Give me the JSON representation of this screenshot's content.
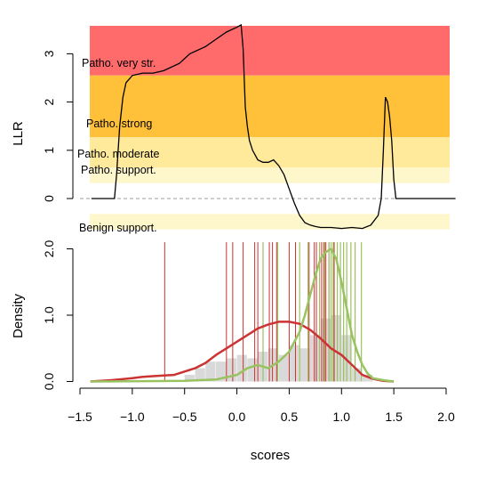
{
  "chart_data": [
    {
      "type": "line",
      "panel": "top",
      "ylabel": "LLR",
      "xlim": [
        -1.5,
        2.0
      ],
      "ylim": [
        -0.65,
        3.55
      ],
      "yticks": [
        0,
        1,
        2,
        3
      ],
      "zero_line": "dashed",
      "colors": {
        "very_strong": "#ff6b6b",
        "strong": "#ffc03a",
        "moderate": "#ffe99a",
        "supporting": "#fff7cc",
        "benign": "#fff7cc"
      },
      "bands": [
        {
          "label": "Patho. very str.",
          "ymin": 2.55,
          "ymax": 3.6,
          "color": "#ff6b6b"
        },
        {
          "label": "Patho. strong",
          "ymin": 1.27,
          "ymax": 2.55,
          "color": "#ffc03a"
        },
        {
          "label": "Patho. moderate",
          "ymin": 0.64,
          "ymax": 1.27,
          "color": "#ffe99a"
        },
        {
          "label": "Patho. support.",
          "ymin": 0.32,
          "ymax": 0.64,
          "color": "#fff7cc"
        },
        {
          "label": "Benign support.",
          "ymin": -0.64,
          "ymax": -0.32,
          "color": "#fff7cc"
        }
      ],
      "series": [
        {
          "x": [
            -1.39,
            -1.17,
            -1.15,
            -1.12,
            -1.09,
            -1.06,
            -1.0,
            -0.9,
            -0.8,
            -0.7,
            -0.55,
            -0.45,
            -0.3,
            -0.2,
            -0.1,
            0.0,
            0.04,
            0.06,
            0.08,
            0.1,
            0.12,
            0.15,
            0.2,
            0.25,
            0.3,
            0.35,
            0.4,
            0.45,
            0.5,
            0.55,
            0.6,
            0.65,
            0.7,
            0.75,
            0.8,
            0.9,
            1.0,
            1.1,
            1.2,
            1.28,
            1.35,
            1.38,
            1.4,
            1.42,
            1.44,
            1.46,
            1.48,
            1.5,
            1.52,
            1.55,
            2.09
          ],
          "y": [
            0.0,
            0.0,
            0.5,
            1.5,
            2.1,
            2.4,
            2.55,
            2.6,
            2.6,
            2.65,
            2.8,
            3.0,
            3.15,
            3.3,
            3.45,
            3.55,
            3.6,
            3.1,
            1.9,
            1.5,
            1.2,
            1.0,
            0.8,
            0.75,
            0.75,
            0.8,
            0.68,
            0.5,
            0.2,
            -0.1,
            -0.35,
            -0.5,
            -0.55,
            -0.58,
            -0.6,
            -0.6,
            -0.62,
            -0.6,
            -0.62,
            -0.55,
            -0.35,
            0.0,
            1.0,
            2.1,
            2.0,
            1.7,
            1.2,
            0.4,
            0.0,
            0.0,
            0.0
          ]
        }
      ]
    },
    {
      "type": "line",
      "panel": "bottom",
      "xlabel": "scores",
      "ylabel": "Density",
      "xlim": [
        -1.5,
        2.0
      ],
      "ylim": [
        0,
        2.0
      ],
      "xticks": [
        -1.5,
        -1.0,
        -0.5,
        0.0,
        0.5,
        1.0,
        1.5,
        2.0
      ],
      "xtick_labels": [
        "−1.5",
        "−1.0",
        "−0.5",
        "0.0",
        "0.5",
        "1.0",
        "1.5",
        "2.0"
      ],
      "yticks": [
        0.0,
        1.0,
        2.0
      ],
      "ytick_labels": [
        "0.0",
        "1.0",
        "2.0"
      ],
      "colors": {
        "pathogenic": "#cc3333",
        "benign": "#99c261",
        "histogram": "#d9d9d9"
      },
      "histogram": {
        "bin_edges": [
          -0.5,
          -0.4,
          -0.3,
          -0.2,
          -0.1,
          0.0,
          0.1,
          0.2,
          0.3,
          0.4,
          0.5,
          0.6,
          0.7,
          0.8,
          0.9,
          1.0,
          1.1,
          1.2,
          1.3
        ],
        "counts": [
          0.1,
          0.2,
          0.3,
          0.3,
          0.35,
          0.4,
          0.35,
          0.45,
          0.5,
          0.4,
          0.55,
          0.5,
          0.7,
          0.95,
          1.0,
          0.7,
          0.2,
          0.1
        ]
      },
      "series": [
        {
          "x": [
            -1.4,
            -1.2,
            -1.0,
            -0.9,
            -0.8,
            -0.7,
            -0.6,
            -0.5,
            -0.4,
            -0.3,
            -0.2,
            -0.1,
            0.0,
            0.1,
            0.2,
            0.3,
            0.4,
            0.5,
            0.6,
            0.7,
            0.8,
            0.9,
            1.0,
            1.1,
            1.2,
            1.3,
            1.4,
            1.5
          ],
          "y": [
            0.0,
            0.02,
            0.05,
            0.07,
            0.08,
            0.09,
            0.1,
            0.15,
            0.2,
            0.28,
            0.4,
            0.5,
            0.6,
            0.7,
            0.8,
            0.86,
            0.9,
            0.9,
            0.87,
            0.78,
            0.65,
            0.5,
            0.4,
            0.25,
            0.1,
            0.04,
            0.01,
            0.0
          ]
        },
        {
          "x": [
            -1.4,
            -0.5,
            -0.2,
            0.0,
            0.1,
            0.2,
            0.3,
            0.4,
            0.5,
            0.6,
            0.65,
            0.7,
            0.75,
            0.8,
            0.85,
            0.9,
            0.95,
            1.0,
            1.05,
            1.1,
            1.15,
            1.2,
            1.25,
            1.3,
            1.4,
            1.5
          ],
          "y": [
            0.0,
            0.01,
            0.03,
            0.1,
            0.2,
            0.25,
            0.2,
            0.3,
            0.45,
            0.75,
            1.0,
            1.3,
            1.6,
            1.85,
            1.95,
            2.0,
            1.85,
            1.5,
            1.1,
            0.7,
            0.45,
            0.25,
            0.12,
            0.05,
            0.02,
            0.0
          ]
        }
      ],
      "pathogenic_ticks": [
        -0.69,
        -0.1,
        -0.04,
        0.06,
        0.17,
        0.2,
        0.25,
        0.31,
        0.34,
        0.38,
        0.5,
        0.56,
        0.69,
        0.74,
        0.76,
        0.79,
        0.81,
        0.83,
        0.85,
        0.88,
        0.93
      ],
      "benign_ticks": [
        0.25,
        0.39,
        0.6,
        0.68,
        0.79,
        0.84,
        0.88,
        0.9,
        0.92,
        0.96,
        0.99,
        1.02,
        1.05,
        1.09,
        1.13,
        1.19
      ]
    }
  ]
}
